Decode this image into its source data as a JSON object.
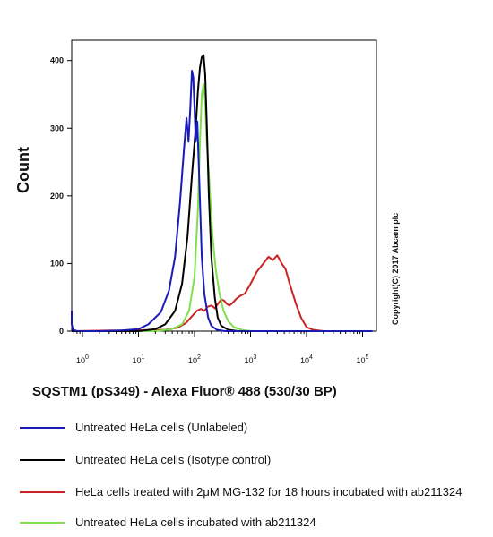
{
  "chart_data": {
    "type": "line",
    "title": "",
    "xlabel": "SQSTM1 (pS349) - Alexa Fluor® 488 (530/30 BP)",
    "ylabel": "Count",
    "x_scale": "log",
    "xlim": [
      0.5,
      150000
    ],
    "ylim": [
      0,
      430
    ],
    "x_ticks": [
      {
        "value": 1,
        "base": "10",
        "exp": "0"
      },
      {
        "value": 10,
        "base": "10",
        "exp": "1"
      },
      {
        "value": 100,
        "base": "10",
        "exp": "2"
      },
      {
        "value": 1000,
        "base": "10",
        "exp": "3"
      },
      {
        "value": 10000,
        "base": "10",
        "exp": "4"
      },
      {
        "value": 100000,
        "base": "10",
        "exp": "5"
      }
    ],
    "y_ticks": [
      0,
      100,
      200,
      300,
      400
    ],
    "grid": false,
    "series": [
      {
        "name": "Untreated HeLa cells (Unlabeled)",
        "color": "#1a1ab8",
        "x": [
          0.5,
          0.6,
          0.68,
          0.8,
          1,
          2,
          5,
          10,
          15,
          25,
          35,
          45,
          55,
          65,
          72,
          78,
          84,
          90,
          95,
          100,
          105,
          112,
          120,
          135,
          150,
          175,
          200,
          250,
          350,
          1000,
          10000,
          150000
        ],
        "y": [
          30,
          10,
          2,
          0,
          0,
          0,
          1,
          3,
          10,
          28,
          60,
          110,
          190,
          270,
          315,
          280,
          330,
          385,
          375,
          330,
          280,
          310,
          240,
          110,
          55,
          20,
          8,
          2,
          0,
          0,
          0,
          0
        ]
      },
      {
        "name": "Untreated HeLa cells (Isotype  control)",
        "color": "#000000",
        "x": [
          0.5,
          10,
          20,
          30,
          45,
          60,
          75,
          90,
          105,
          115,
          125,
          135,
          145,
          155,
          165,
          180,
          200,
          230,
          260,
          300,
          400,
          600,
          1000,
          150000
        ],
        "y": [
          0,
          0,
          3,
          10,
          30,
          70,
          140,
          230,
          300,
          355,
          390,
          405,
          408,
          380,
          310,
          200,
          110,
          50,
          20,
          8,
          2,
          0,
          0,
          0
        ]
      },
      {
        "name": "HeLa cells treated with 2μM MG-132 for 18 hours incubated with ab211324",
        "color": "#cc2222",
        "x": [
          0.5,
          30,
          50,
          70,
          90,
          110,
          130,
          150,
          170,
          200,
          230,
          260,
          300,
          340,
          380,
          420,
          480,
          560,
          650,
          800,
          1000,
          1300,
          1700,
          2100,
          2500,
          3000,
          3600,
          4200,
          5000,
          6500,
          8000,
          10000,
          13000,
          20000,
          150000
        ],
        "y": [
          0,
          2,
          5,
          12,
          22,
          30,
          33,
          30,
          36,
          38,
          34,
          40,
          47,
          45,
          40,
          38,
          42,
          48,
          52,
          56,
          70,
          88,
          100,
          110,
          105,
          112,
          100,
          92,
          70,
          40,
          20,
          6,
          2,
          0,
          0
        ]
      },
      {
        "name": "Untreated HeLa cells incubated with ab211324",
        "color": "#7ee04a",
        "x": [
          0.5,
          20,
          40,
          60,
          80,
          100,
          115,
          125,
          135,
          145,
          155,
          165,
          175,
          190,
          210,
          240,
          280,
          330,
          400,
          500,
          700,
          1000,
          150000
        ],
        "y": [
          0,
          0,
          3,
          10,
          30,
          80,
          180,
          280,
          350,
          365,
          340,
          280,
          250,
          200,
          140,
          90,
          55,
          30,
          15,
          6,
          2,
          0,
          0
        ]
      }
    ],
    "legend_position": "bottom",
    "annotation": "Copyright(C) 2017 Abcam plc"
  }
}
